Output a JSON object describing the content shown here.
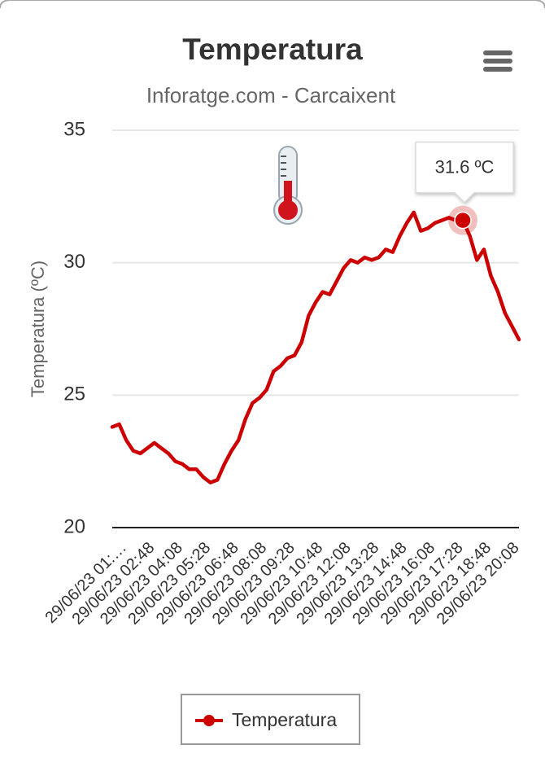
{
  "chart_data": {
    "type": "line",
    "title": "Temperatura",
    "subtitle": "Inforatge.com - Carcaixent",
    "y_label": "Temperatura (ºC)",
    "categories": [
      null,
      "29/06/23 01:…",
      null,
      null,
      null,
      "29/06/23 02:48",
      null,
      null,
      null,
      "29/06/23 04:08",
      null,
      null,
      null,
      "29/06/23 05:28",
      null,
      null,
      null,
      "29/06/23 06:48",
      null,
      null,
      null,
      "29/06/23 08:08",
      null,
      null,
      null,
      "29/06/23 09:28",
      null,
      null,
      null,
      "29/06/23 10:48",
      null,
      null,
      null,
      "29/06/23 12:08",
      null,
      null,
      null,
      "29/06/23 13:28",
      null,
      null,
      null,
      "29/06/23 14:48",
      null,
      null,
      null,
      "29/06/23 16:08",
      null,
      null,
      null,
      "29/06/23 17:28",
      null,
      null,
      null,
      "29/06/23 18:48",
      null,
      null,
      null,
      "29/06/23 20:08",
      null
    ],
    "series": [
      {
        "name": "Temperatura",
        "color": "#cc0000",
        "values": [
          23.8,
          23.9,
          23.3,
          22.9,
          22.8,
          23.0,
          23.2,
          23.0,
          22.8,
          22.5,
          22.4,
          22.2,
          22.2,
          21.9,
          21.7,
          21.8,
          22.4,
          22.9,
          23.3,
          24.1,
          24.7,
          24.9,
          25.2,
          25.9,
          26.1,
          26.4,
          26.5,
          27.0,
          28.0,
          28.5,
          28.9,
          28.8,
          29.3,
          29.8,
          30.1,
          30.0,
          30.2,
          30.1,
          30.2,
          30.5,
          30.4,
          31.0,
          31.5,
          31.9,
          31.2,
          31.3,
          31.5,
          31.6,
          31.7,
          31.6,
          31.6,
          31.0,
          30.1,
          30.5,
          29.5,
          28.9,
          28.1,
          27.6,
          27.1
        ]
      }
    ],
    "tooltip_index": 50,
    "tooltip_label": "31.6 ºC",
    "ylim": [
      20,
      35
    ],
    "yticks": [
      20,
      25,
      30,
      35
    ],
    "grid": true,
    "legend": "bottom"
  }
}
